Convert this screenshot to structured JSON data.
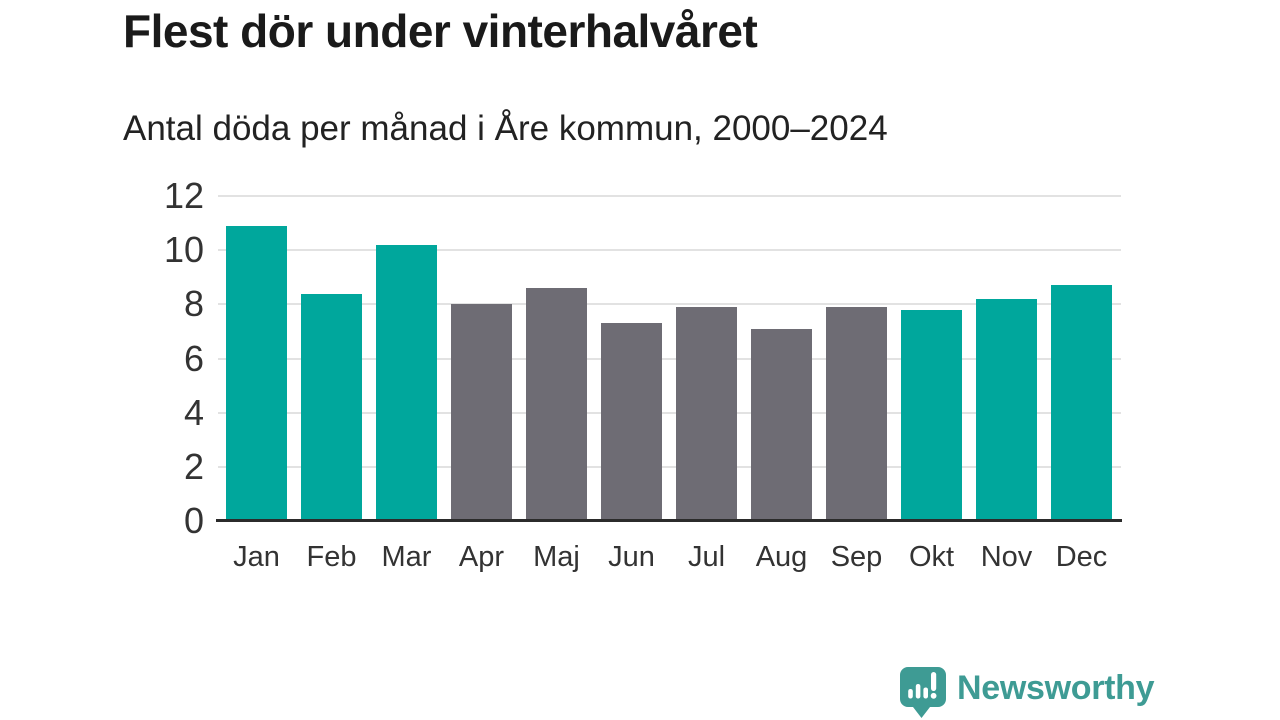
{
  "chart_data": {
    "type": "bar",
    "title": "Flest dör under vinterhalvåret",
    "subtitle": "Antal döda per månad i Åre kommun, 2000–2024",
    "categories": [
      "Jan",
      "Feb",
      "Mar",
      "Apr",
      "Maj",
      "Jun",
      "Jul",
      "Aug",
      "Sep",
      "Okt",
      "Nov",
      "Dec"
    ],
    "values": [
      10.9,
      8.4,
      10.2,
      8.0,
      8.6,
      7.3,
      7.9,
      7.1,
      7.9,
      7.8,
      8.2,
      8.7
    ],
    "ylim": [
      0,
      12
    ],
    "yticks": [
      0,
      2,
      4,
      6,
      8,
      10,
      12
    ],
    "grid": true,
    "legend_position": "none",
    "bar_color_keys": [
      "winter",
      "winter",
      "winter",
      "summer",
      "summer",
      "summer",
      "summer",
      "summer",
      "summer",
      "winter",
      "winter",
      "winter"
    ],
    "colors": {
      "winter": "#00A79C",
      "summer": "#6E6C74",
      "gridline": "#E2E2E2",
      "axis_line": "#2B2B2B",
      "tick_label": "#333333",
      "title": "#1A1A1A",
      "subtitle": "#222222"
    }
  },
  "footer": {
    "brand": "Newsworthy",
    "brand_color": "#3E9B94",
    "logo_icon": "newsworthy-speech-bubble-bar-chart-icon"
  }
}
